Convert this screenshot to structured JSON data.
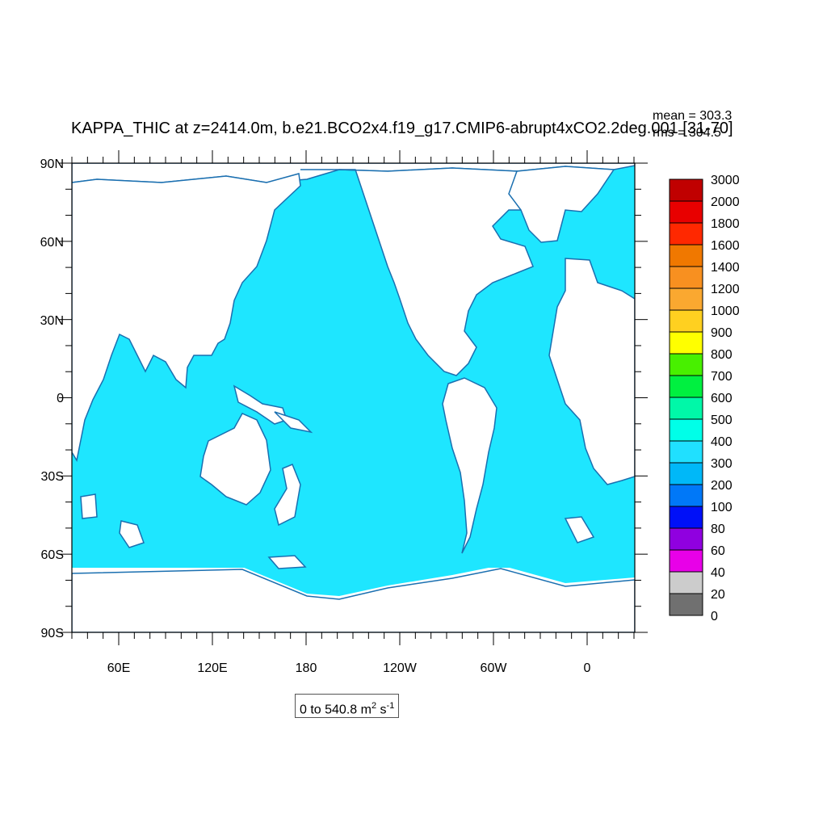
{
  "plot": {
    "title": "KAPPA_THIC at z=2414.0m, b.e21.BCO2x4.f19_g17.CMIP6-abrupt4xCO2.2deg.001 [31-70]",
    "mean_label": "mean = 303.3",
    "rms_label": "rms = 304.5",
    "range_text": "0 to 540.8",
    "units_base": "m",
    "units_exp1": "2",
    "units_s": "s",
    "units_exp2": "-1"
  },
  "map": {
    "lat_labels": [
      "90N",
      "60N",
      "30N",
      "0",
      "30S",
      "60S",
      "90S"
    ],
    "lon_labels": [
      "60E",
      "120E",
      "180",
      "120W",
      "60W",
      "0"
    ],
    "ocean_color": "#1ee6ff",
    "coast_color": "#1a6fb0",
    "land_color": "#ffffff"
  },
  "colorbar": {
    "levels": [
      "3000",
      "2000",
      "1800",
      "1600",
      "1400",
      "1200",
      "1000",
      "900",
      "800",
      "700",
      "600",
      "500",
      "400",
      "300",
      "200",
      "100",
      "80",
      "60",
      "40",
      "20",
      "0"
    ],
    "colors": [
      "#c00000",
      "#e80000",
      "#ff2800",
      "#f07800",
      "#f89020",
      "#faa830",
      "#ffd020",
      "#ffff00",
      "#48f000",
      "#00f040",
      "#00f8a8",
      "#00ffe8",
      "#20e0ff",
      "#00b8f8",
      "#0078f8",
      "#0010f8",
      "#9000e0",
      "#e800e8",
      "#cccccc",
      "#707070"
    ]
  }
}
